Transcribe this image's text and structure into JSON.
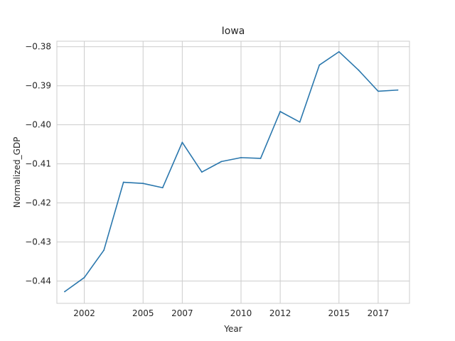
{
  "chart_data": {
    "type": "line",
    "title": "Iowa",
    "xlabel": "Year",
    "ylabel": "Normalized_GDP",
    "x": [
      2001,
      2002,
      2003,
      2004,
      2005,
      2006,
      2007,
      2008,
      2009,
      2010,
      2011,
      2012,
      2013,
      2014,
      2015,
      2016,
      2017,
      2018
    ],
    "series": [
      {
        "name": "",
        "color": "#2a77ad",
        "values": [
          -0.4427,
          -0.4391,
          -0.4321,
          -0.4147,
          -0.415,
          -0.4161,
          -0.4045,
          -0.4121,
          -0.4094,
          -0.4084,
          -0.4086,
          -0.3966,
          -0.3993,
          -0.3847,
          -0.3813,
          -0.386,
          -0.3914,
          -0.3911
        ]
      }
    ],
    "xticks": [
      2002,
      2005,
      2007,
      2010,
      2012,
      2015,
      2017
    ],
    "yticks": [
      -0.44,
      -0.43,
      -0.42,
      -0.41,
      -0.4,
      -0.39,
      -0.38
    ],
    "ytick_labels": [
      "−0.44",
      "−0.43",
      "−0.42",
      "−0.41",
      "−0.40",
      "−0.39",
      "−0.38"
    ],
    "xlim": [
      2000.6,
      2018.6
    ],
    "ylim": [
      -0.4457,
      -0.3786
    ],
    "grid": true,
    "legend": "none"
  }
}
